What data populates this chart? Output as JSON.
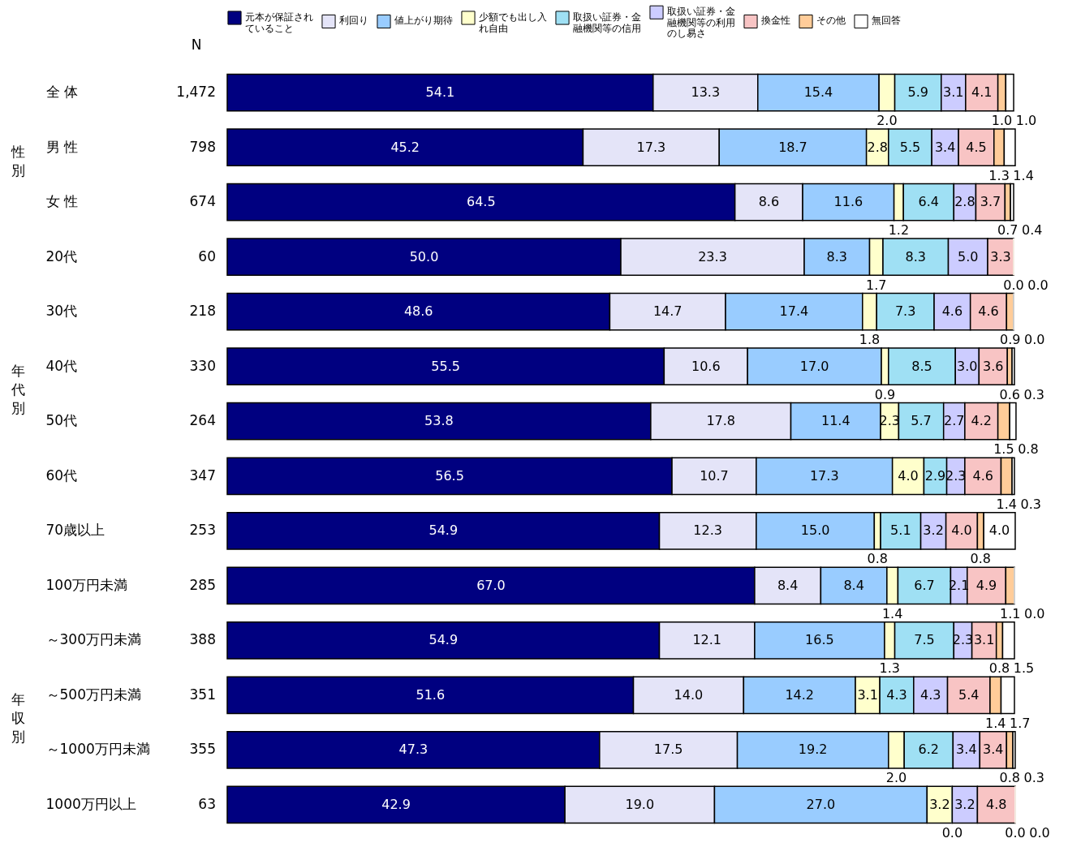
{
  "chart_data": {
    "type": "bar",
    "orientation": "horizontal",
    "stacked": true,
    "legend": "top",
    "tick_labels": "y",
    "xlim": [
      0,
      100
    ],
    "categories": [
      "全 体",
      "男 性",
      "女 性",
      "20代",
      "30代",
      "40代",
      "50代",
      "60代",
      "70歳以上",
      "100万円未満",
      "～300万円未満",
      "～500万円未満",
      "～1000万円未満",
      "1000万円以上"
    ],
    "y2_categories": [
      "1,472",
      "798",
      "674",
      "60",
      "218",
      "330",
      "264",
      "347",
      "253",
      "285",
      "388",
      "351",
      "355",
      "63"
    ],
    "annotations": [
      "N",
      "性別",
      "年代別",
      "年収別"
    ],
    "series": [
      {
        "name": "元本が保証されていること",
        "color": "#000080",
        "values": [
          54.1,
          45.2,
          64.5,
          50.0,
          48.6,
          55.5,
          53.8,
          56.5,
          54.9,
          67.0,
          54.9,
          51.6,
          47.3,
          42.9
        ],
        "value_labels": [
          "54.1",
          "45.2",
          "64.5",
          "50.0",
          "48.6",
          "55.5",
          "53.8",
          "56.5",
          "54.9",
          "67.0",
          "54.9",
          "51.6",
          "47.3",
          "42.9"
        ]
      },
      {
        "name": "利回り",
        "color": "#e4e4f8",
        "values": [
          13.3,
          17.3,
          8.6,
          23.3,
          14.7,
          10.6,
          17.8,
          10.7,
          12.3,
          8.4,
          12.1,
          14.0,
          17.5,
          19.0
        ],
        "value_labels": [
          "13.3",
          "17.3",
          "8.6",
          "23.3",
          "14.7",
          "10.6",
          "17.8",
          "10.7",
          "12.3",
          "8.4",
          "12.1",
          "14.0",
          "17.5",
          "19.0"
        ]
      },
      {
        "name": "値上がり期待",
        "color": "#99ccff",
        "values": [
          15.4,
          18.7,
          11.6,
          8.3,
          17.4,
          17.0,
          11.4,
          17.3,
          15.0,
          8.4,
          16.5,
          14.2,
          19.2,
          27.0
        ],
        "value_labels": [
          "15.4",
          "18.7",
          "11.6",
          "8.3",
          "17.4",
          "17.0",
          "11.4",
          "17.3",
          "15.0",
          "8.4",
          "16.5",
          "14.2",
          "19.2",
          "27.0"
        ]
      },
      {
        "name": "少額でも出し入れ自由",
        "color": "#ffffcc",
        "values": [
          2.0,
          2.8,
          1.2,
          1.7,
          1.8,
          0.9,
          2.3,
          4.0,
          0.8,
          1.4,
          1.3,
          3.1,
          2.0,
          3.2
        ],
        "value_labels": [
          "2.0",
          "2.8",
          "1.2",
          "1.7",
          "1.8",
          "0.9",
          "2.3",
          "4.0",
          "0.8",
          "1.4",
          "1.3",
          "3.1",
          "2.0",
          "3.2"
        ]
      },
      {
        "name": "取扱い証券・金融機関等の信用",
        "color": "#9fe0f4",
        "values": [
          5.9,
          5.5,
          6.4,
          8.3,
          7.3,
          8.5,
          5.7,
          2.9,
          5.1,
          6.7,
          7.5,
          4.3,
          6.2,
          0.0
        ],
        "value_labels": [
          "5.9",
          "5.5",
          "6.4",
          "8.3",
          "7.3",
          "8.5",
          "5.7",
          "2.9",
          "5.1",
          "6.7",
          "7.5",
          "4.3",
          "6.2",
          "0.0"
        ]
      },
      {
        "name": "取扱い証券・金融機関等の利用のし易さ",
        "color": "#ccccff",
        "values": [
          3.1,
          3.4,
          2.8,
          5.0,
          4.6,
          3.0,
          2.7,
          2.3,
          3.2,
          2.1,
          2.3,
          4.3,
          3.4,
          3.2
        ],
        "value_labels": [
          "3.1",
          "3.4",
          "2.8",
          "5.0",
          "4.6",
          "3.0",
          "2.7",
          "2.3",
          "3.2",
          "2.1",
          "2.3",
          "4.3",
          "3.4",
          "3.2"
        ]
      },
      {
        "name": "換金性",
        "color": "#f8c4c4",
        "values": [
          4.1,
          4.5,
          3.7,
          3.3,
          4.6,
          3.6,
          4.2,
          4.6,
          4.0,
          4.9,
          3.1,
          5.4,
          3.4,
          4.8
        ],
        "value_labels": [
          "4.1",
          "4.5",
          "3.7",
          "3.3",
          "4.6",
          "3.6",
          "4.2",
          "4.6",
          "4.0",
          "4.9",
          "3.1",
          "5.4",
          "3.4",
          "4.8"
        ]
      },
      {
        "name": "その他",
        "color": "#ffcc99",
        "values": [
          1.0,
          1.3,
          0.7,
          0.0,
          0.9,
          0.6,
          1.5,
          1.4,
          0.8,
          1.1,
          0.8,
          1.4,
          0.8,
          0.0
        ],
        "value_labels": [
          "1.0",
          "1.3",
          "0.7",
          "0.0",
          "0.9",
          "0.6",
          "1.5",
          "1.4",
          "0.8",
          "1.1",
          "0.8",
          "1.4",
          "0.8",
          "0.0"
        ]
      },
      {
        "name": "無回答",
        "color": "#ffffff",
        "values": [
          1.0,
          1.4,
          0.4,
          0.0,
          0.0,
          0.3,
          0.8,
          0.3,
          4.0,
          0.0,
          1.5,
          1.7,
          0.3,
          0.0
        ],
        "value_labels": [
          "1.0",
          "1.4",
          "0.4",
          "0.0",
          "0.0",
          "0.3",
          "0.8",
          "0.3",
          "4.0",
          "0.0",
          "1.5",
          "1.7",
          "0.3",
          "0.0"
        ]
      }
    ]
  }
}
